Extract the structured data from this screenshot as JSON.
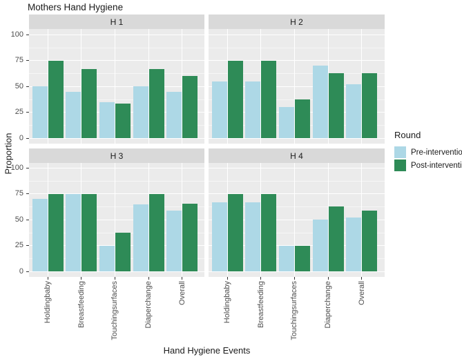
{
  "chart_data": {
    "type": "bar",
    "title": "Mothers Hand Hygiene",
    "xlabel": "Hand Hygiene Events",
    "ylabel": "Proportion",
    "legend_title": "Round",
    "legend_position": "right",
    "grid": true,
    "facet_layout": "2x2",
    "panel_background": "#EBEBEB",
    "strip_background": "#D9D9D9",
    "gridline_color": "#FFFFFF",
    "axis_text_color": "#4D4D4D",
    "categories": [
      "Holdingbaby",
      "Breastfeeding",
      "Touchingsurfaces",
      "Diaperchange",
      "Overall"
    ],
    "y_ticks": [
      0,
      25,
      50,
      75,
      100
    ],
    "y_tick_labels": [
      "0",
      "25",
      "50",
      "75",
      "100"
    ],
    "ylim": [
      0,
      105
    ],
    "series": [
      {
        "name": "Pre-intervention",
        "color": "#ADD8E6"
      },
      {
        "name": "Post-intervention",
        "color": "#2E8B57"
      }
    ],
    "facets": [
      {
        "label": "H 1",
        "series_values": [
          [
            50,
            45,
            35,
            50,
            45
          ],
          [
            75,
            66.7,
            33.3,
            66.7,
            60
          ]
        ]
      },
      {
        "label": "H 2",
        "series_values": [
          [
            55,
            55,
            30,
            70,
            52
          ],
          [
            75,
            75,
            37.5,
            62.5,
            62.5
          ]
        ]
      },
      {
        "label": "H 3",
        "series_values": [
          [
            70,
            75,
            25,
            65,
            58.5
          ],
          [
            75,
            75,
            37.5,
            75,
            65.5
          ]
        ]
      },
      {
        "label": "H 4",
        "series_values": [
          [
            66.7,
            66.7,
            25,
            50,
            52
          ],
          [
            75,
            75,
            25,
            62.5,
            59
          ]
        ]
      }
    ]
  }
}
